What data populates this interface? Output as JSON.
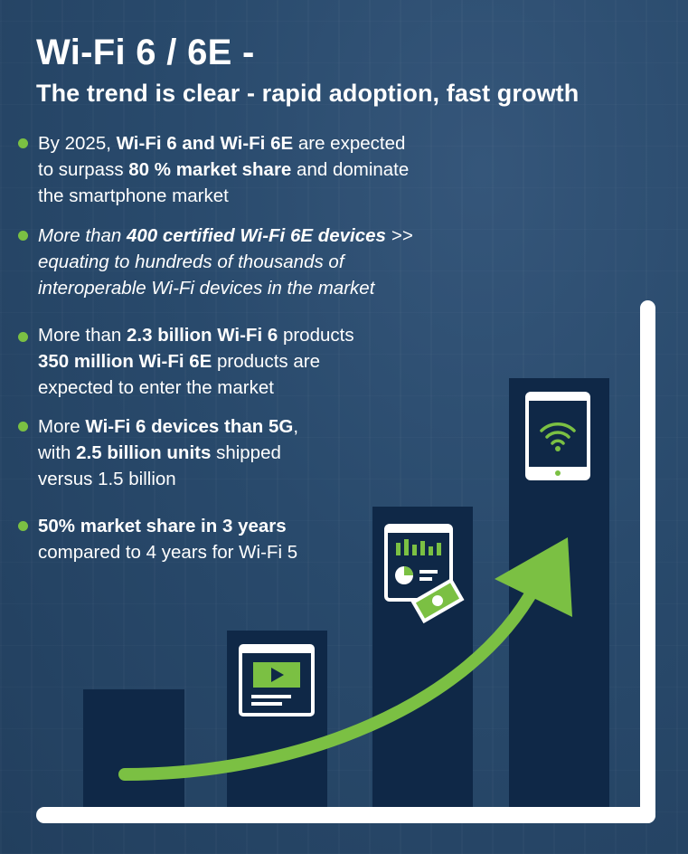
{
  "header": {
    "title": "Wi-Fi 6 / 6E -",
    "subtitle": "The trend is clear - rapid adoption, fast growth"
  },
  "bullets": [
    {
      "lines": [
        [
          {
            "t": "By 2025, "
          },
          {
            "t": "Wi-Fi 6 and Wi-Fi 6E",
            "b": true
          },
          {
            "t": " are expected"
          }
        ],
        [
          {
            "t": "to surpass "
          },
          {
            "t": "80 % market share",
            "b": true
          },
          {
            "t": " and dominate"
          }
        ],
        [
          {
            "t": "the smartphone market"
          }
        ]
      ]
    },
    {
      "italic": true,
      "lines": [
        [
          {
            "t": "More than "
          },
          {
            "t": "400 certified Wi-Fi 6E devices",
            "b": true
          },
          {
            "t": " >>"
          }
        ],
        [
          {
            "t": "equating to hundreds of thousands of"
          }
        ],
        [
          {
            "t": "interoperable Wi-Fi devices in the market"
          }
        ]
      ]
    },
    {
      "lines": [
        [
          {
            "t": "More than "
          },
          {
            "t": "2.3 billion Wi-Fi 6",
            "b": true
          },
          {
            "t": " products"
          }
        ],
        [
          {
            "t": "350 million Wi-Fi 6E",
            "b": true
          },
          {
            "t": " products are"
          }
        ],
        [
          {
            "t": "expected to enter the market"
          }
        ]
      ]
    },
    {
      "lines": [
        [
          {
            "t": "More "
          },
          {
            "t": "Wi-Fi 6 devices than 5G",
            "b": true
          },
          {
            "t": ","
          }
        ],
        [
          {
            "t": "with "
          },
          {
            "t": "2.5 billion units",
            "b": true
          },
          {
            "t": " shipped"
          }
        ],
        [
          {
            "t": "versus 1.5 billion"
          }
        ]
      ]
    },
    {
      "lines": [
        [
          {
            "t": "50% market share in 3 years",
            "b": true
          }
        ],
        [
          {
            "t": "compared to 4 years for Wi-Fi 5"
          }
        ]
      ]
    }
  ],
  "growth_bars": [
    {
      "icon": "none",
      "level": 0.27
    },
    {
      "icon": "video-player-icon",
      "level": 0.42
    },
    {
      "icon": "dashboard-money-icon",
      "level": 0.69
    },
    {
      "icon": "wifi-tablet-icon",
      "level": 1.0
    }
  ],
  "colors": {
    "background": "#294a6c",
    "bar": "#0f2847",
    "accent_green": "#7bc043",
    "text": "#ffffff"
  }
}
